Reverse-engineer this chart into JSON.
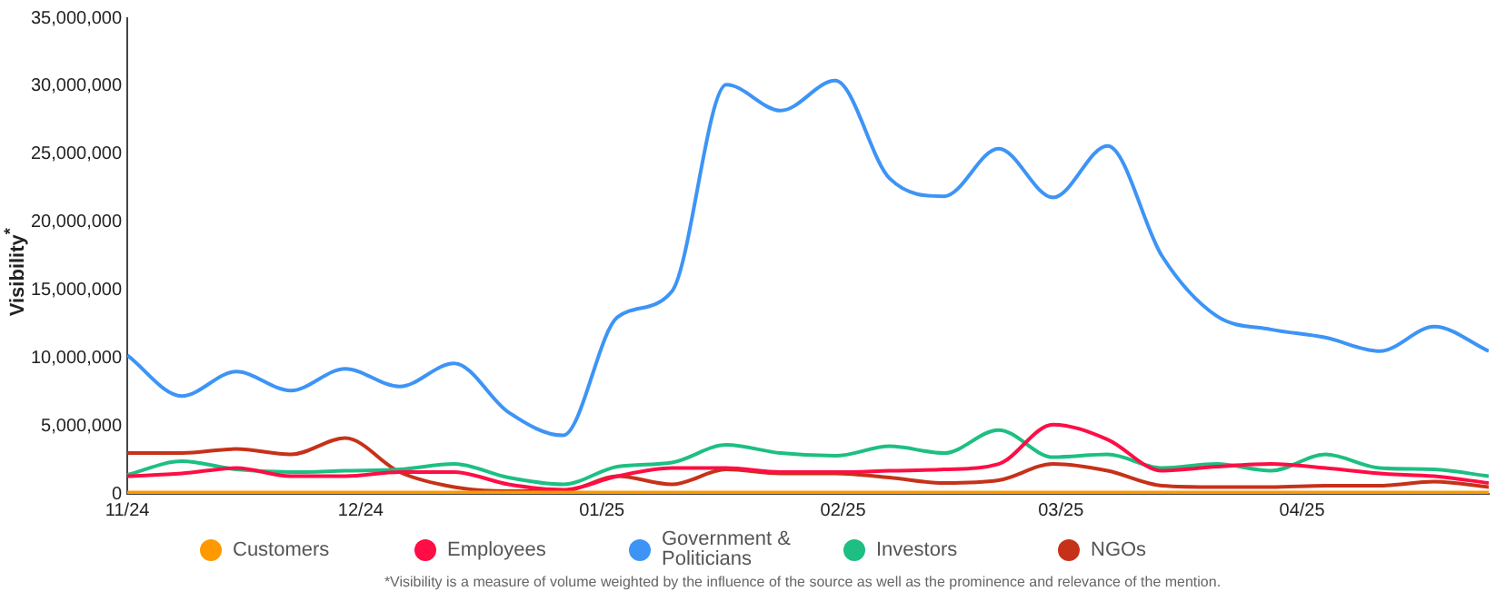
{
  "chart_data": {
    "type": "line",
    "ylabel": "Visibility$^{*}$",
    "x": [
      "2024-11-01",
      "2024-11-08",
      "2024-11-15",
      "2024-11-22",
      "2024-11-29",
      "2024-12-06",
      "2024-12-13",
      "2024-12-20",
      "2024-12-27",
      "2025-01-03",
      "2025-01-10",
      "2025-01-17",
      "2025-01-24",
      "2025-01-31",
      "2025-02-07",
      "2025-02-14",
      "2025-02-21",
      "2025-02-28",
      "2025-03-07",
      "2025-03-14",
      "2025-03-21",
      "2025-03-28",
      "2025-04-04",
      "2025-04-11",
      "2025-04-18",
      "2025-04-25"
    ],
    "xlim": [
      "2024-11-01",
      "2025-04-25"
    ],
    "xticks": [
      {
        "value": "2024-11-01",
        "label": "11/24"
      },
      {
        "value": "2024-12-01",
        "label": "12/24"
      },
      {
        "value": "2025-01-01",
        "label": "01/25"
      },
      {
        "value": "2025-02-01",
        "label": "02/25"
      },
      {
        "value": "2025-03-01",
        "label": "03/25"
      },
      {
        "value": "2025-04-01",
        "label": "04/25"
      }
    ],
    "ylim": [
      0,
      35000000
    ],
    "yticks": [
      {
        "value": 0,
        "label": "0"
      },
      {
        "value": 5000000,
        "label": "5,000,000"
      },
      {
        "value": 10000000,
        "label": "10,000,000"
      },
      {
        "value": 15000000,
        "label": "15,000,000"
      },
      {
        "value": 20000000,
        "label": "20,000,000"
      },
      {
        "value": 25000000,
        "label": "25,000,000"
      },
      {
        "value": 30000000,
        "label": "30,000,000"
      },
      {
        "value": 35000000,
        "label": "35,000,000"
      }
    ],
    "series": [
      {
        "name": "Customers",
        "color": "#ff9900",
        "values": [
          100000,
          100000,
          100000,
          100000,
          100000,
          100000,
          100000,
          100000,
          100000,
          100000,
          100000,
          100000,
          100000,
          100000,
          100000,
          100000,
          100000,
          100000,
          100000,
          100000,
          100000,
          100000,
          100000,
          100000,
          100000,
          100000
        ]
      },
      {
        "name": "Employees",
        "color": "#ff0d45",
        "values": [
          1300000,
          1500000,
          1900000,
          1300000,
          1300000,
          1600000,
          1600000,
          700000,
          300000,
          1300000,
          1900000,
          1900000,
          1600000,
          1600000,
          1700000,
          1800000,
          2200000,
          5100000,
          4000000,
          1700000,
          2000000,
          2200000,
          1900000,
          1500000,
          1300000,
          800000
        ]
      },
      {
        "name": "Government & Politicians",
        "color": "#3d94f6",
        "values": [
          10200000,
          7200000,
          9000000,
          7600000,
          9200000,
          7900000,
          9600000,
          6000000,
          4300000,
          13000000,
          14900000,
          30100000,
          28200000,
          30400000,
          23200000,
          21900000,
          25400000,
          21800000,
          25600000,
          17500000,
          13100000,
          12100000,
          11500000,
          10500000,
          12300000,
          10500000
        ]
      },
      {
        "name": "Investors",
        "color": "#1dbf82",
        "values": [
          1400000,
          2400000,
          1800000,
          1600000,
          1700000,
          1800000,
          2200000,
          1200000,
          700000,
          2000000,
          2300000,
          3600000,
          3000000,
          2800000,
          3500000,
          3000000,
          4700000,
          2700000,
          2900000,
          1900000,
          2200000,
          1700000,
          2900000,
          1900000,
          1800000,
          1300000
        ]
      },
      {
        "name": "NGOs",
        "color": "#c63219",
        "values": [
          3000000,
          3000000,
          3300000,
          2900000,
          4100000,
          1600000,
          500000,
          200000,
          200000,
          1300000,
          700000,
          1800000,
          1500000,
          1500000,
          1200000,
          800000,
          1000000,
          2200000,
          1700000,
          600000,
          500000,
          500000,
          600000,
          600000,
          900000,
          500000
        ]
      }
    ],
    "legend": "bottom",
    "grid": false,
    "annotations": [
      "*Visibility is a measure of volume weighted by the influence of the source as well as the prominence and relevance of the mention."
    ]
  }
}
